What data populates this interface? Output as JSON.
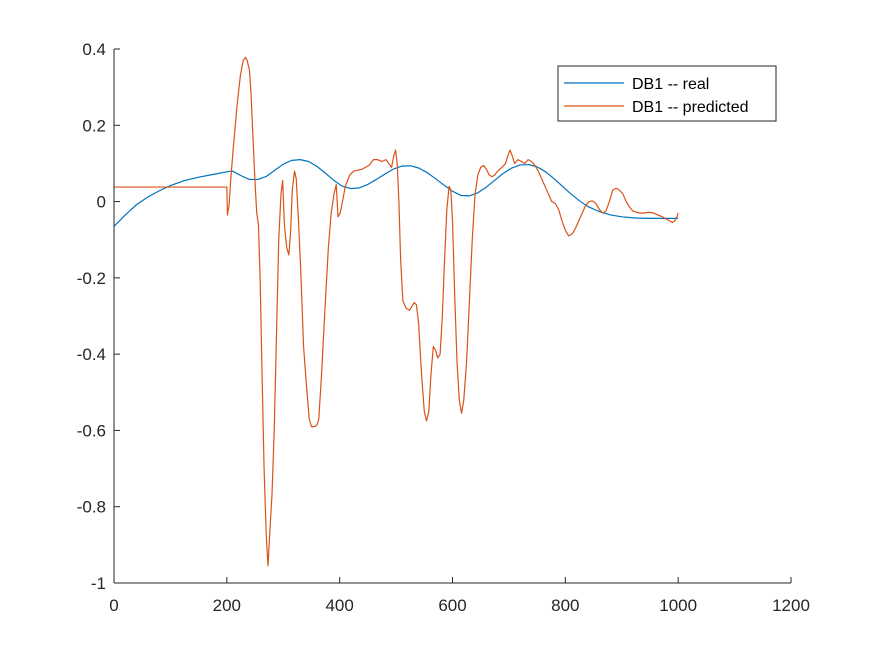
{
  "chart_data": {
    "type": "line",
    "xlim": [
      0,
      1200
    ],
    "ylim": [
      -1,
      0.4
    ],
    "x_ticks": [
      0,
      200,
      400,
      600,
      800,
      1000,
      1200
    ],
    "y_ticks": [
      -1,
      -0.8,
      -0.6,
      -0.4,
      -0.2,
      0,
      0.2,
      0.4
    ],
    "x_tick_labels": [
      "0",
      "200",
      "400",
      "600",
      "800",
      "1000",
      "1200"
    ],
    "y_tick_labels": [
      "-1",
      "-0.8",
      "-0.6",
      "-0.4",
      "-0.2",
      "0",
      "0.2",
      "0.4"
    ],
    "grid": false,
    "legend_location": "top-right",
    "series": [
      {
        "name": "DB1 -- real",
        "color": "#0072BD",
        "points": [
          [
            0,
            -0.065
          ],
          [
            20,
            -0.035
          ],
          [
            40,
            -0.008
          ],
          [
            60,
            0.012
          ],
          [
            80,
            0.028
          ],
          [
            100,
            0.042
          ],
          [
            125,
            0.055
          ],
          [
            150,
            0.064
          ],
          [
            175,
            0.071
          ],
          [
            200,
            0.078
          ],
          [
            210,
            0.08
          ],
          [
            225,
            0.068
          ],
          [
            240,
            0.058
          ],
          [
            255,
            0.058
          ],
          [
            270,
            0.066
          ],
          [
            285,
            0.082
          ],
          [
            300,
            0.098
          ],
          [
            315,
            0.108
          ],
          [
            330,
            0.11
          ],
          [
            345,
            0.105
          ],
          [
            360,
            0.092
          ],
          [
            375,
            0.074
          ],
          [
            390,
            0.055
          ],
          [
            405,
            0.04
          ],
          [
            420,
            0.034
          ],
          [
            435,
            0.036
          ],
          [
            450,
            0.045
          ],
          [
            465,
            0.058
          ],
          [
            480,
            0.072
          ],
          [
            495,
            0.085
          ],
          [
            510,
            0.093
          ],
          [
            525,
            0.094
          ],
          [
            540,
            0.088
          ],
          [
            555,
            0.076
          ],
          [
            570,
            0.06
          ],
          [
            585,
            0.043
          ],
          [
            600,
            0.027
          ],
          [
            615,
            0.016
          ],
          [
            630,
            0.015
          ],
          [
            645,
            0.023
          ],
          [
            660,
            0.038
          ],
          [
            675,
            0.056
          ],
          [
            690,
            0.074
          ],
          [
            705,
            0.088
          ],
          [
            720,
            0.096
          ],
          [
            735,
            0.097
          ],
          [
            750,
            0.091
          ],
          [
            765,
            0.078
          ],
          [
            780,
            0.06
          ],
          [
            795,
            0.04
          ],
          [
            810,
            0.02
          ],
          [
            825,
            0.002
          ],
          [
            840,
            -0.013
          ],
          [
            860,
            -0.026
          ],
          [
            880,
            -0.035
          ],
          [
            900,
            -0.04
          ],
          [
            925,
            -0.043
          ],
          [
            950,
            -0.044
          ],
          [
            975,
            -0.044
          ],
          [
            1000,
            -0.044
          ]
        ]
      },
      {
        "name": "DB1 -- predicted",
        "color": "#D95319",
        "points": [
          [
            0,
            0.038
          ],
          [
            100,
            0.038
          ],
          [
            200,
            0.038
          ],
          [
            201,
            -0.035
          ],
          [
            204,
            -0.01
          ],
          [
            207,
            0.06
          ],
          [
            212,
            0.15
          ],
          [
            218,
            0.25
          ],
          [
            224,
            0.33
          ],
          [
            229,
            0.37
          ],
          [
            233,
            0.378
          ],
          [
            236,
            0.37
          ],
          [
            240,
            0.345
          ],
          [
            243,
            0.28
          ],
          [
            246,
            0.18
          ],
          [
            250,
            0.05
          ],
          [
            253,
            -0.03
          ],
          [
            256,
            -0.06
          ],
          [
            259,
            -0.2
          ],
          [
            262,
            -0.42
          ],
          [
            266,
            -0.7
          ],
          [
            270,
            -0.88
          ],
          [
            273,
            -0.955
          ],
          [
            276,
            -0.87
          ],
          [
            280,
            -0.77
          ],
          [
            284,
            -0.6
          ],
          [
            288,
            -0.35
          ],
          [
            292,
            -0.1
          ],
          [
            296,
            0.02
          ],
          [
            299,
            0.055
          ],
          [
            302,
            -0.06
          ],
          [
            306,
            -0.12
          ],
          [
            310,
            -0.14
          ],
          [
            313,
            -0.08
          ],
          [
            316,
            0.03
          ],
          [
            320,
            0.08
          ],
          [
            323,
            0.06
          ],
          [
            327,
            -0.05
          ],
          [
            331,
            -0.18
          ],
          [
            336,
            -0.38
          ],
          [
            341,
            -0.48
          ],
          [
            346,
            -0.57
          ],
          [
            350,
            -0.59
          ],
          [
            356,
            -0.59
          ],
          [
            360,
            -0.585
          ],
          [
            363,
            -0.57
          ],
          [
            368,
            -0.45
          ],
          [
            374,
            -0.28
          ],
          [
            380,
            -0.12
          ],
          [
            385,
            -0.03
          ],
          [
            390,
            0.02
          ],
          [
            394,
            0.045
          ],
          [
            397,
            -0.04
          ],
          [
            401,
            -0.03
          ],
          [
            405,
            0.0
          ],
          [
            410,
            0.04
          ],
          [
            418,
            0.07
          ],
          [
            425,
            0.08
          ],
          [
            440,
            0.085
          ],
          [
            452,
            0.095
          ],
          [
            460,
            0.11
          ],
          [
            467,
            0.11
          ],
          [
            475,
            0.105
          ],
          [
            482,
            0.11
          ],
          [
            487,
            0.1
          ],
          [
            492,
            0.09
          ],
          [
            496,
            0.12
          ],
          [
            499,
            0.135
          ],
          [
            502,
            0.1
          ],
          [
            505,
            0.0
          ],
          [
            508,
            -0.15
          ],
          [
            512,
            -0.26
          ],
          [
            518,
            -0.28
          ],
          [
            524,
            -0.285
          ],
          [
            528,
            -0.275
          ],
          [
            532,
            -0.265
          ],
          [
            536,
            -0.27
          ],
          [
            540,
            -0.32
          ],
          [
            545,
            -0.45
          ],
          [
            550,
            -0.55
          ],
          [
            554,
            -0.575
          ],
          [
            558,
            -0.55
          ],
          [
            562,
            -0.45
          ],
          [
            566,
            -0.38
          ],
          [
            570,
            -0.39
          ],
          [
            574,
            -0.41
          ],
          [
            578,
            -0.4
          ],
          [
            582,
            -0.3
          ],
          [
            586,
            -0.15
          ],
          [
            590,
            -0.02
          ],
          [
            594,
            0.04
          ],
          [
            597,
            0.03
          ],
          [
            600,
            -0.05
          ],
          [
            604,
            -0.25
          ],
          [
            608,
            -0.42
          ],
          [
            612,
            -0.52
          ],
          [
            616,
            -0.555
          ],
          [
            620,
            -0.52
          ],
          [
            625,
            -0.42
          ],
          [
            630,
            -0.26
          ],
          [
            635,
            -0.1
          ],
          [
            640,
            0.02
          ],
          [
            645,
            0.07
          ],
          [
            650,
            0.09
          ],
          [
            655,
            0.095
          ],
          [
            660,
            0.085
          ],
          [
            665,
            0.07
          ],
          [
            670,
            0.065
          ],
          [
            675,
            0.07
          ],
          [
            680,
            0.08
          ],
          [
            688,
            0.09
          ],
          [
            694,
            0.1
          ],
          [
            698,
            0.12
          ],
          [
            702,
            0.135
          ],
          [
            706,
            0.12
          ],
          [
            710,
            0.1
          ],
          [
            716,
            0.11
          ],
          [
            722,
            0.105
          ],
          [
            728,
            0.1
          ],
          [
            734,
            0.11
          ],
          [
            740,
            0.105
          ],
          [
            746,
            0.095
          ],
          [
            752,
            0.08
          ],
          [
            758,
            0.06
          ],
          [
            764,
            0.04
          ],
          [
            770,
            0.02
          ],
          [
            776,
            0.0
          ],
          [
            782,
            -0.005
          ],
          [
            788,
            -0.02
          ],
          [
            794,
            -0.05
          ],
          [
            800,
            -0.075
          ],
          [
            806,
            -0.09
          ],
          [
            812,
            -0.085
          ],
          [
            818,
            -0.07
          ],
          [
            824,
            -0.05
          ],
          [
            830,
            -0.03
          ],
          [
            836,
            -0.01
          ],
          [
            842,
            0.0
          ],
          [
            848,
            0.002
          ],
          [
            854,
            -0.005
          ],
          [
            860,
            -0.02
          ],
          [
            866,
            -0.03
          ],
          [
            872,
            -0.025
          ],
          [
            878,
            0.0
          ],
          [
            884,
            0.03
          ],
          [
            890,
            0.035
          ],
          [
            896,
            0.03
          ],
          [
            902,
            0.02
          ],
          [
            908,
            0.0
          ],
          [
            914,
            -0.015
          ],
          [
            920,
            -0.025
          ],
          [
            926,
            -0.028
          ],
          [
            932,
            -0.03
          ],
          [
            940,
            -0.03
          ],
          [
            948,
            -0.028
          ],
          [
            956,
            -0.03
          ],
          [
            964,
            -0.035
          ],
          [
            972,
            -0.04
          ],
          [
            978,
            -0.045
          ],
          [
            984,
            -0.05
          ],
          [
            990,
            -0.055
          ],
          [
            994,
            -0.05
          ],
          [
            998,
            -0.04
          ],
          [
            1000,
            -0.03
          ]
        ]
      }
    ]
  }
}
